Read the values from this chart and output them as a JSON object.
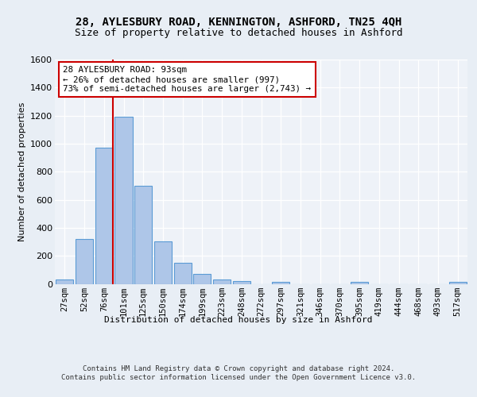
{
  "title1": "28, AYLESBURY ROAD, KENNINGTON, ASHFORD, TN25 4QH",
  "title2": "Size of property relative to detached houses in Ashford",
  "xlabel": "Distribution of detached houses by size in Ashford",
  "ylabel": "Number of detached properties",
  "categories": [
    "27sqm",
    "52sqm",
    "76sqm",
    "101sqm",
    "125sqm",
    "150sqm",
    "174sqm",
    "199sqm",
    "223sqm",
    "248sqm",
    "272sqm",
    "297sqm",
    "321sqm",
    "346sqm",
    "370sqm",
    "395sqm",
    "419sqm",
    "444sqm",
    "468sqm",
    "493sqm",
    "517sqm"
  ],
  "values": [
    30,
    320,
    970,
    1195,
    700,
    305,
    150,
    70,
    30,
    20,
    0,
    15,
    0,
    0,
    0,
    12,
    0,
    0,
    0,
    0,
    12
  ],
  "bar_color": "#aec6e8",
  "bar_edge_color": "#5b9bd5",
  "vline_color": "#cc0000",
  "annotation_text": "28 AYLESBURY ROAD: 93sqm\n← 26% of detached houses are smaller (997)\n73% of semi-detached houses are larger (2,743) →",
  "annotation_box_color": "#ffffff",
  "annotation_box_edge": "#cc0000",
  "footer": "Contains HM Land Registry data © Crown copyright and database right 2024.\nContains public sector information licensed under the Open Government Licence v3.0.",
  "ylim": [
    0,
    1600
  ],
  "yticks": [
    0,
    200,
    400,
    600,
    800,
    1000,
    1200,
    1400,
    1600
  ],
  "bg_color": "#e8eef5",
  "plot_bg": "#eef2f8",
  "grid_color": "#ffffff",
  "title_fontsize": 10,
  "subtitle_fontsize": 9,
  "tick_fontsize": 7.5,
  "footer_fontsize": 6.5,
  "ylabel_fontsize": 8,
  "xlabel_fontsize": 8
}
